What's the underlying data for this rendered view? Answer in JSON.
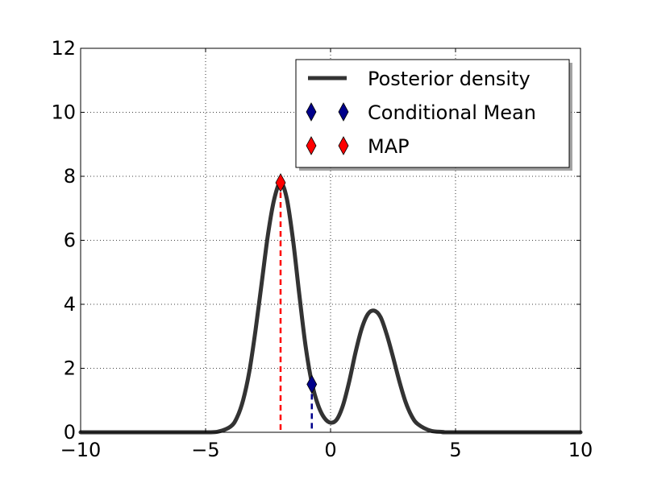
{
  "chart_data": {
    "type": "line",
    "title": "",
    "xlabel": "",
    "ylabel": "",
    "xlim": [
      -10,
      10
    ],
    "ylim": [
      0,
      12
    ],
    "xticks": [
      -10,
      -5,
      0,
      5,
      10
    ],
    "yticks": [
      0,
      2,
      4,
      6,
      8,
      10,
      12
    ],
    "xtick_labels": [
      "−10",
      "−5",
      "0",
      "5",
      "10"
    ],
    "ytick_labels": [
      "0",
      "2",
      "4",
      "6",
      "8",
      "10",
      "12"
    ],
    "grid": true,
    "legend_position": "top-right",
    "series": [
      {
        "name": "Posterior density",
        "color": "#333333",
        "x": [
          -10,
          -6,
          -5,
          -4.5,
          -4,
          -3.75,
          -3.5,
          -3.25,
          -3,
          -2.75,
          -2.5,
          -2.25,
          -2,
          -1.75,
          -1.5,
          -1.25,
          -1,
          -0.75,
          -0.5,
          -0.25,
          0,
          0.25,
          0.5,
          0.75,
          1,
          1.25,
          1.5,
          1.75,
          2,
          2.25,
          2.5,
          2.75,
          3,
          3.25,
          3.5,
          4,
          4.5,
          5,
          10
        ],
        "y": [
          0,
          0,
          0,
          0.02,
          0.18,
          0.45,
          1.0,
          1.9,
          3.2,
          4.7,
          6.2,
          7.3,
          7.8,
          7.3,
          6.0,
          4.3,
          2.7,
          1.55,
          0.85,
          0.45,
          0.3,
          0.4,
          0.85,
          1.6,
          2.5,
          3.25,
          3.7,
          3.8,
          3.6,
          3.05,
          2.35,
          1.6,
          0.95,
          0.5,
          0.25,
          0.05,
          0.01,
          0,
          0
        ]
      },
      {
        "name": "Conditional Mean",
        "color": "#00008b",
        "marker": "diamond",
        "x": [
          -0.75
        ],
        "y": [
          1.5
        ]
      },
      {
        "name": "MAP",
        "color": "#ff0000",
        "marker": "diamond",
        "x": [
          -2
        ],
        "y": [
          7.8
        ]
      }
    ]
  }
}
